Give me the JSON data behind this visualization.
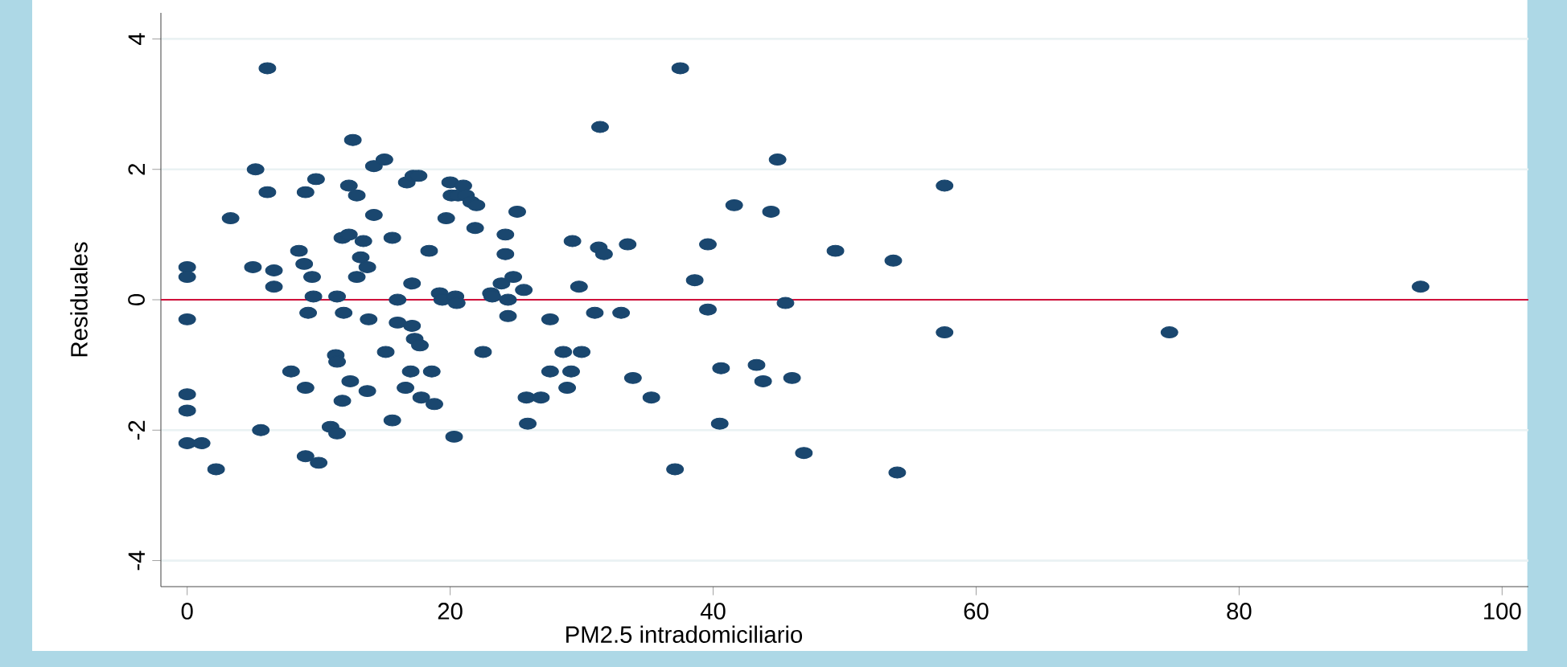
{
  "chart_data": {
    "type": "scatter",
    "xlabel": "PM2.5 intradomiciliario",
    "ylabel": "Residuales",
    "x": [
      0,
      0,
      0,
      0,
      0,
      0,
      1.1,
      2.2,
      3.3,
      5.2,
      5,
      6.1,
      6.1,
      6.6,
      6.6,
      5.6,
      7.9,
      8.5,
      8.9,
      9,
      9,
      9.2,
      9.5,
      9.6,
      10,
      9.8,
      9,
      10.9,
      11.3,
      11.4,
      11.4,
      11.4,
      11.8,
      11.9,
      11.8,
      12.3,
      12.6,
      12.3,
      12.4,
      12.9,
      12.9,
      13.2,
      13.4,
      13.7,
      13.8,
      13.7,
      14.2,
      14.2,
      15,
      15.1,
      15.6,
      15.6,
      16,
      16,
      16.6,
      16.7,
      17.2,
      17.6,
      17.1,
      17.1,
      17,
      17.3,
      17.7,
      17.8,
      18.4,
      18.6,
      18.8,
      19.2,
      19.4,
      19.7,
      20,
      20.1,
      20.4,
      20.3,
      20.5,
      20.6,
      21,
      21.2,
      21.6,
      22,
      21.9,
      22.5,
      23.1,
      23.2,
      23.9,
      24.2,
      24.2,
      24.4,
      24.4,
      25.1,
      24.8,
      25.6,
      25.8,
      25.9,
      26.9,
      27.6,
      27.6,
      28.6,
      28.9,
      29.3,
      29.2,
      29.8,
      30,
      31,
      31.4,
      31.3,
      31.7,
      33,
      33.5,
      33.9,
      35.3,
      37.1,
      37.5,
      38.6,
      39.6,
      39.6,
      40.5,
      40.6,
      41.6,
      43.3,
      43.8,
      44.4,
      44.9,
      45.5,
      46,
      46.9,
      49.3,
      53.7,
      54,
      57.6,
      57.6,
      74.7,
      93.8
    ],
    "values": [
      0.5,
      0.35,
      -0.3,
      -1.45,
      -1.7,
      -2.2,
      -2.2,
      -2.6,
      1.25,
      2,
      0.5,
      3.55,
      1.65,
      0.45,
      0.2,
      -2,
      -1.1,
      0.75,
      0.55,
      -1.35,
      -2.4,
      -0.2,
      0.35,
      0.05,
      -2.5,
      1.85,
      1.65,
      -1.95,
      -0.85,
      -0.95,
      0.05,
      -2.05,
      -1.55,
      -0.2,
      0.95,
      1.75,
      2.45,
      1,
      -1.25,
      1.6,
      0.35,
      0.65,
      0.9,
      0.5,
      -0.3,
      -1.4,
      1.3,
      2.05,
      2.15,
      -0.8,
      -1.85,
      0.95,
      0,
      -0.35,
      -1.35,
      1.8,
      1.9,
      1.9,
      0.25,
      -0.4,
      -1.1,
      -0.6,
      -0.7,
      -1.5,
      0.75,
      -1.1,
      -1.6,
      0.1,
      0,
      1.25,
      1.8,
      1.6,
      0.05,
      -2.1,
      -0.05,
      1.6,
      1.75,
      1.6,
      1.5,
      1.45,
      1.1,
      -0.8,
      0.1,
      0.05,
      0.25,
      1,
      0.7,
      0,
      -0.25,
      1.35,
      0.35,
      0.15,
      -1.5,
      -1.9,
      -1.5,
      -0.3,
      -1.1,
      -0.8,
      -1.35,
      0.9,
      -1.1,
      0.2,
      -0.8,
      -0.2,
      2.65,
      0.8,
      0.7,
      -0.2,
      0.85,
      -1.2,
      -1.5,
      -2.6,
      3.55,
      0.3,
      0.85,
      -0.15,
      -1.9,
      -1.05,
      1.45,
      -1,
      -1.25,
      1.35,
      2.15,
      -0.05,
      -1.2,
      -2.35,
      0.75,
      0.6,
      -2.65,
      1.75,
      -0.5,
      -0.5,
      0.2
    ],
    "color": "#1a476f",
    "marker": "circle",
    "xlim": [
      -2,
      102
    ],
    "ylim": [
      -4.4,
      4.4
    ],
    "xticks": [
      0,
      20,
      40,
      60,
      80,
      100
    ],
    "yticks": [
      -4,
      -2,
      0,
      2,
      4
    ],
    "grid": "y",
    "ref_lines": [
      {
        "axis": "y",
        "value": 0,
        "color": "#d0103a"
      }
    ]
  }
}
